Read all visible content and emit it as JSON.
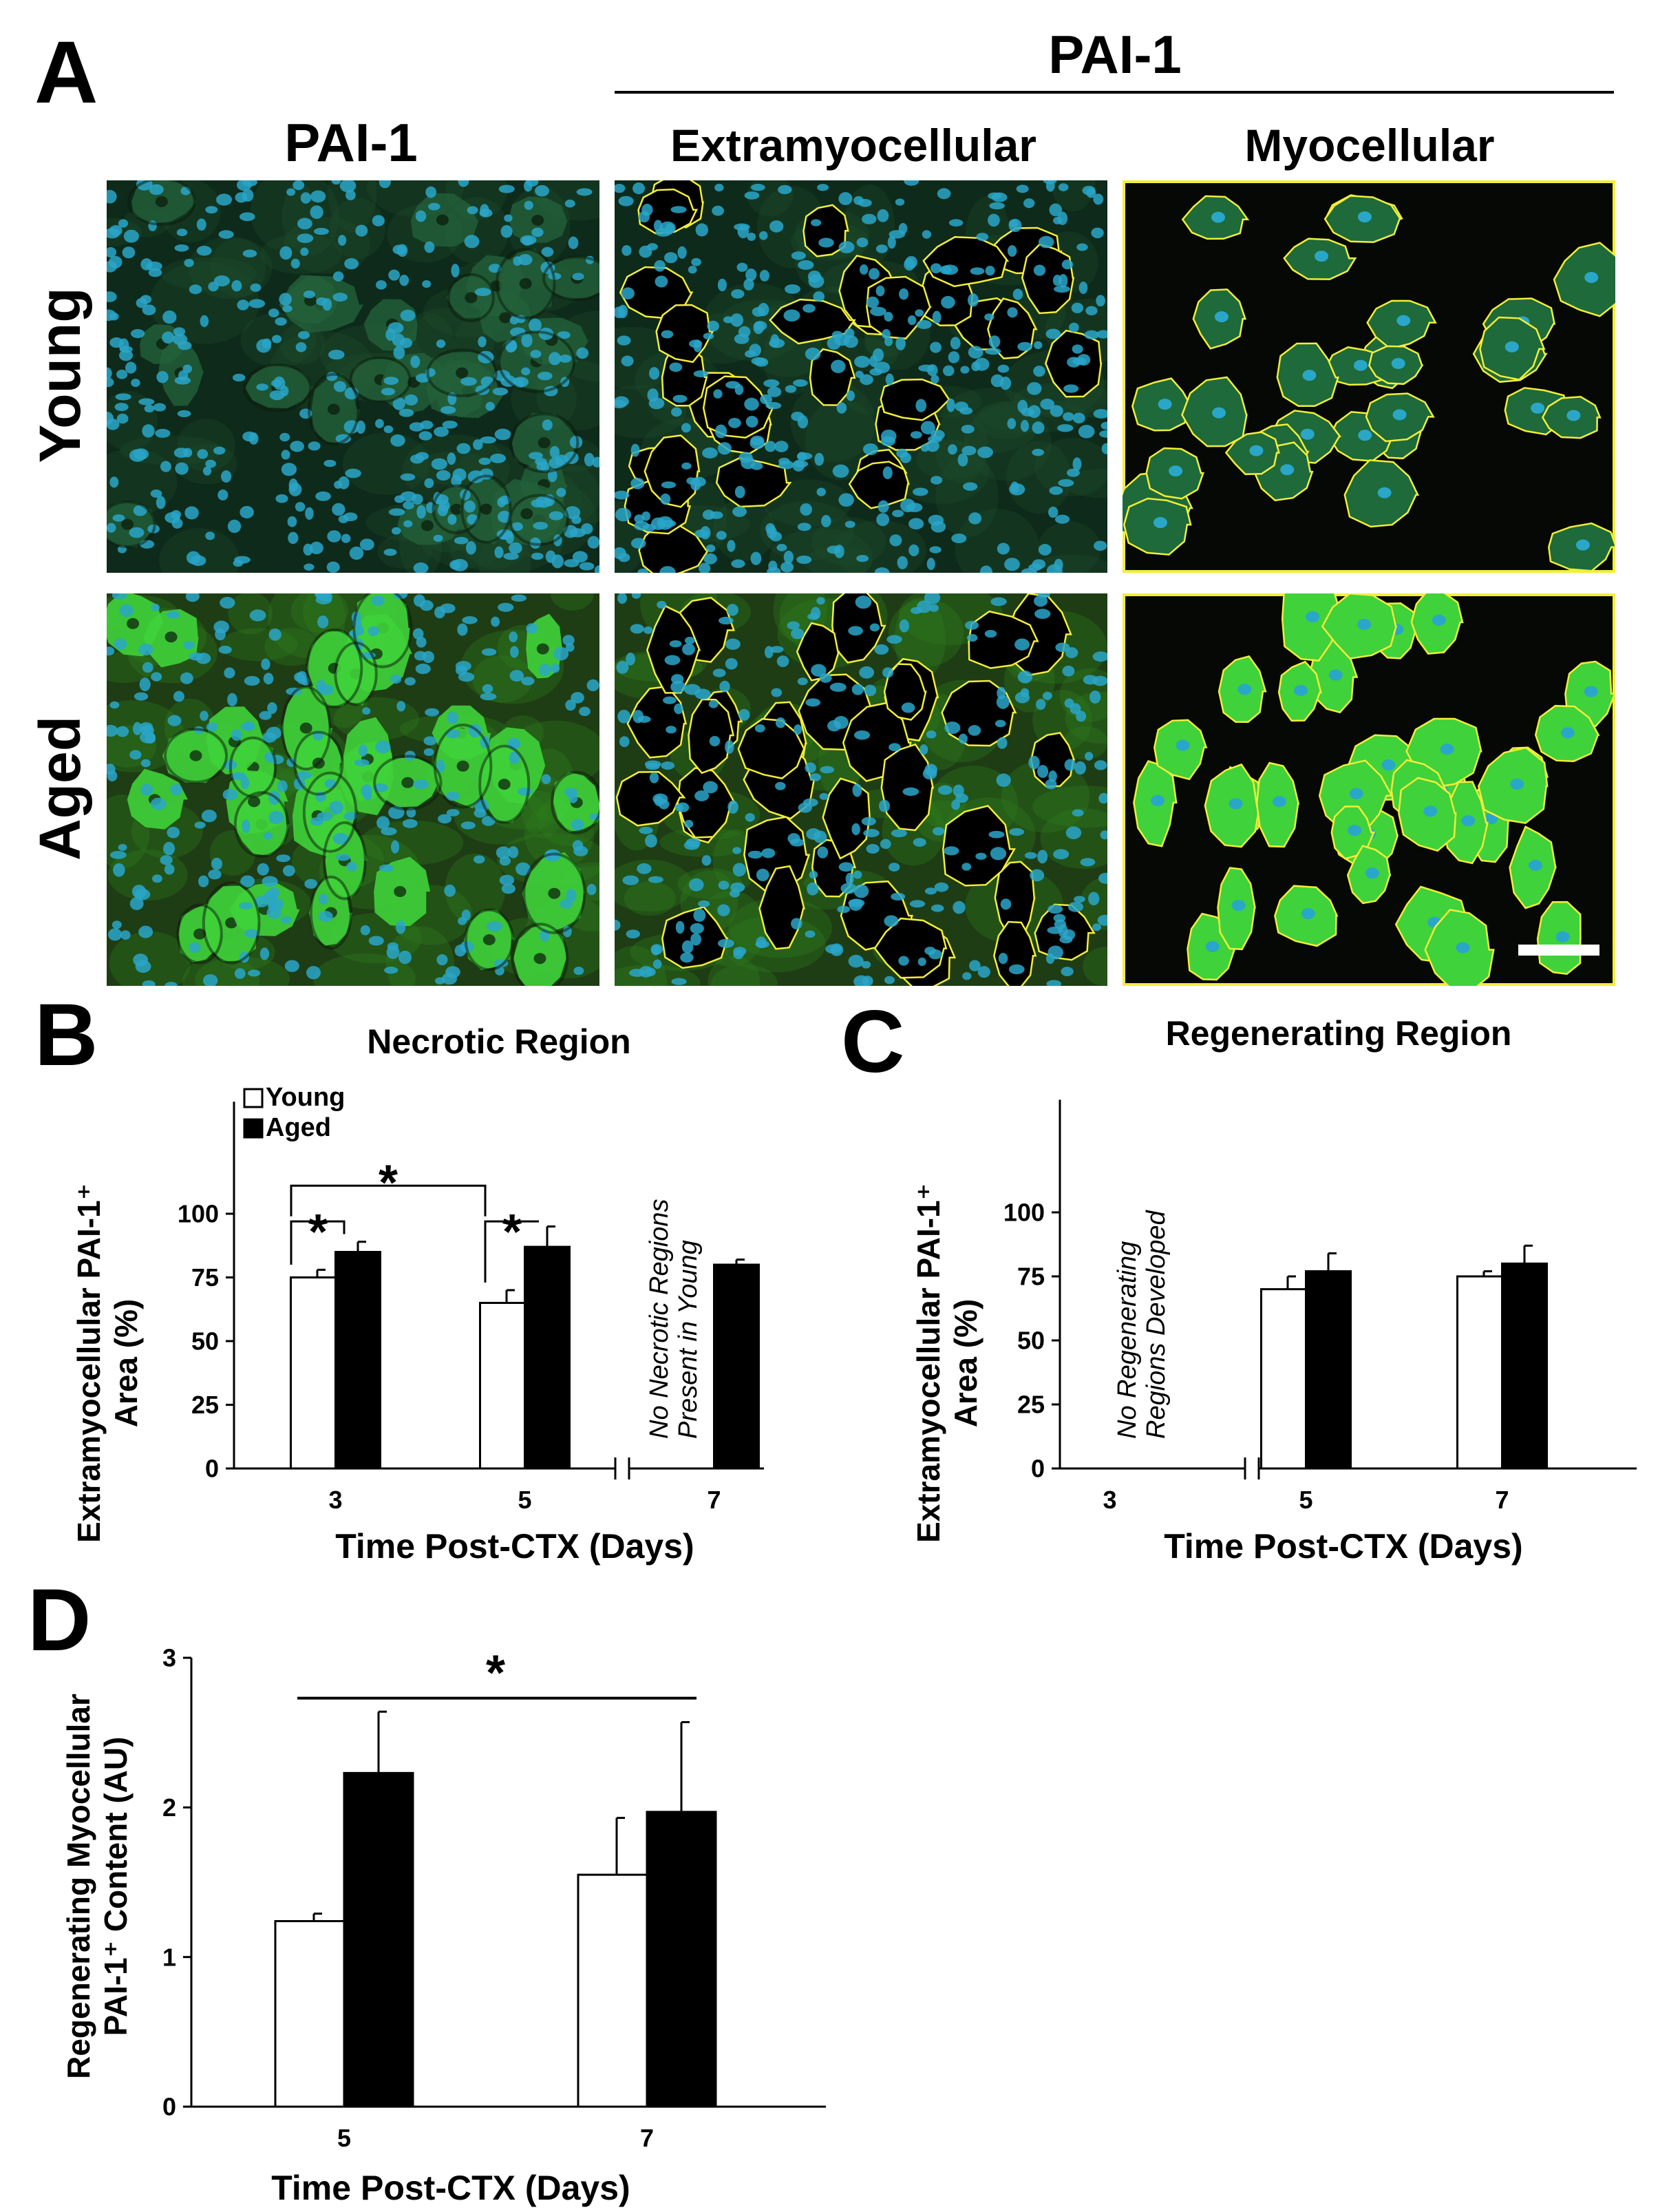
{
  "panel_a": {
    "letter": "A",
    "header_group": "PAI-1",
    "col_titles": [
      "PAI-1",
      "Extramyocellular",
      "Myocellular"
    ],
    "row_titles": [
      "Young",
      "Aged"
    ],
    "colors": {
      "dapi": "#2aa6c9",
      "pai1": "#3fd23a",
      "outline": "#f2ee3a",
      "background": "#050805"
    }
  },
  "panel_b": {
    "letter": "B"
  },
  "panel_c": {
    "letter": "C"
  },
  "panel_d": {
    "letter": "D"
  },
  "chart_data": [
    {
      "type": "bar",
      "title": "Necrotic Region",
      "xlabel": "Time Post-CTX (Days)",
      "ylabel": "Extramyocellular PAI-1⁺ Area (%)",
      "ylim": [
        0,
        120
      ],
      "yticks": [
        "0",
        "25",
        "50",
        "75",
        "100"
      ],
      "categories": [
        "3",
        "5",
        "7"
      ],
      "series": [
        {
          "name": "Young",
          "values": [
            75,
            65,
            null
          ],
          "errors": [
            3,
            5,
            null
          ],
          "color": "#ffffff"
        },
        {
          "name": "Aged",
          "values": [
            85,
            87,
            80
          ],
          "errors": [
            4,
            8,
            2
          ],
          "color": "#000000"
        }
      ],
      "annotation": "No Necrotic Regions Present in Young",
      "significance": [
        "*",
        "*",
        "*"
      ],
      "legend_placement": "top-left"
    },
    {
      "type": "bar",
      "title": "Regenerating Region",
      "xlabel": "Time Post-CTX (Days)",
      "ylabel": "Extramyocellular PAI-1⁺ Area (%)",
      "ylim": [
        0,
        120
      ],
      "yticks": [
        "0",
        "25",
        "50",
        "75",
        "100"
      ],
      "categories": [
        "3",
        "5",
        "7"
      ],
      "series": [
        {
          "name": "Young",
          "values": [
            null,
            70,
            75
          ],
          "errors": [
            null,
            5,
            2
          ],
          "color": "#ffffff"
        },
        {
          "name": "Aged",
          "values": [
            null,
            77,
            80
          ],
          "errors": [
            null,
            7,
            7
          ],
          "color": "#000000"
        }
      ],
      "annotation": "No Regenerating Regions Developed"
    },
    {
      "type": "bar",
      "title": "",
      "xlabel": "Time Post-CTX (Days)",
      "ylabel": "Regenerating Myocellular PAI-1⁺ Content (AU)",
      "ylim": [
        0,
        3
      ],
      "yticks": [
        "0",
        "1",
        "2",
        "3"
      ],
      "categories": [
        "5",
        "7"
      ],
      "series": [
        {
          "name": "Young",
          "values": [
            1.24,
            1.55
          ],
          "errors": [
            0.05,
            0.38
          ],
          "color": "#ffffff"
        },
        {
          "name": "Aged",
          "values": [
            2.23,
            1.97
          ],
          "errors": [
            0.41,
            0.6
          ],
          "color": "#000000"
        }
      ],
      "significance": [
        "*"
      ]
    }
  ]
}
